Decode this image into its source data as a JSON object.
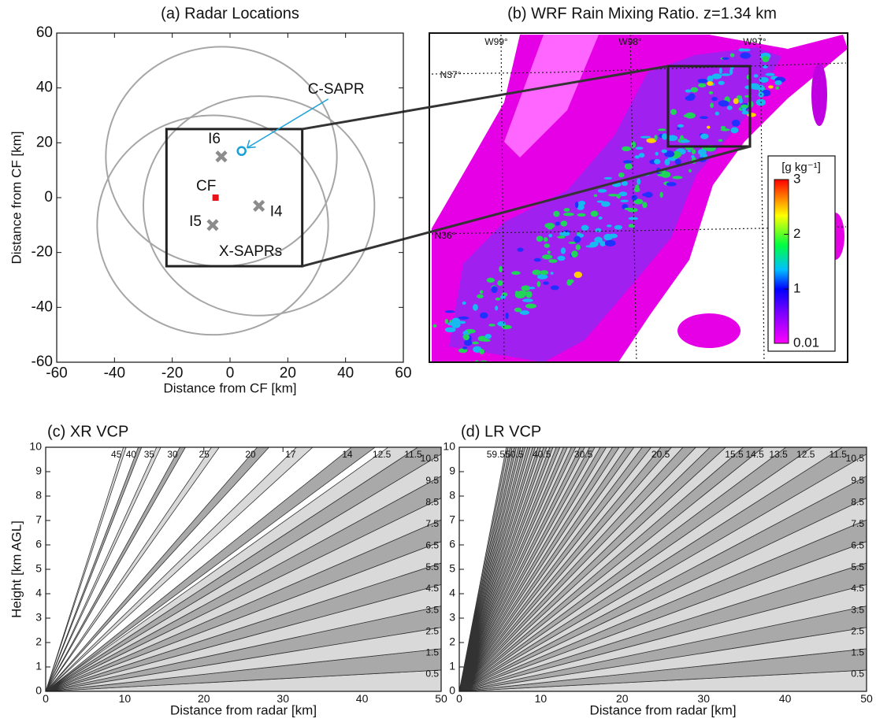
{
  "chart_data": [
    {
      "type": "sites",
      "title": "(a) Radar Locations",
      "xlabel": "Distance from CF [km]",
      "ylabel": "Distance from CF [km]",
      "xlim": [
        -60,
        60
      ],
      "ylim": [
        -60,
        60
      ],
      "xticks": [
        -60,
        -40,
        -20,
        0,
        20,
        40,
        60
      ],
      "yticks": [
        -60,
        -40,
        -20,
        0,
        20,
        40,
        60
      ],
      "sites": [
        {
          "name": "C-SAPR",
          "x": 4,
          "y": 17,
          "color": "#1ba1d8",
          "marker": "circle"
        },
        {
          "name": "I6",
          "x": -3,
          "y": 15,
          "color": "#8c8c8c",
          "marker": "x",
          "ring_radius": 40
        },
        {
          "name": "CF",
          "x": -5,
          "y": 0,
          "color": "#e8141b",
          "marker": "square"
        },
        {
          "name": "I4",
          "x": 10,
          "y": -3,
          "color": "#8c8c8c",
          "marker": "x",
          "ring_radius": 40
        },
        {
          "name": "I5",
          "x": -6,
          "y": -10,
          "color": "#8c8c8c",
          "marker": "x",
          "ring_radius": 40
        }
      ],
      "group_label": "X-SAPRs",
      "zoom_box": {
        "xlim": [
          -22,
          25
        ],
        "ylim": [
          -25,
          25
        ]
      }
    },
    {
      "type": "image",
      "title": "(b) WRF Rain Mixing Ratio. z=1.34 km",
      "lon_labels": [
        "W99°",
        "W98°",
        "W97°"
      ],
      "lat_labels": [
        "N37°",
        "N36°"
      ],
      "colorbar": {
        "label": "[g kg⁻¹]",
        "lim": [
          0.01,
          3
        ],
        "ticks": [
          0.01,
          1,
          2,
          3
        ]
      }
    },
    {
      "type": "beams",
      "title": "(c) XR VCP",
      "xlabel": "Distance from radar [km]",
      "ylabel": "Height [km AGL]",
      "xlim": [
        0,
        50
      ],
      "ylim": [
        0,
        10
      ],
      "xticks": [
        0,
        10,
        20,
        30,
        40,
        50
      ],
      "yticks": [
        0,
        1,
        2,
        3,
        4,
        5,
        6,
        7,
        8,
        9,
        10
      ],
      "labeled_beams": [
        0.5,
        1.5,
        2.5,
        3.5,
        4.5,
        5.5,
        6.5,
        7.5,
        8.5,
        9.5,
        10.5,
        11.5,
        12.5,
        14,
        17,
        20,
        25,
        30,
        35,
        40,
        45
      ],
      "unlabeled_beams": []
    },
    {
      "type": "beams",
      "title": "(d) LR VCP",
      "xlabel": "Distance from radar [km]",
      "xlim": [
        0,
        50
      ],
      "ylim": [
        0,
        10
      ],
      "xticks": [
        0,
        10,
        20,
        30,
        40,
        50
      ],
      "yticks": [
        0,
        1,
        2,
        3,
        4,
        5,
        6,
        7,
        8,
        9,
        10
      ],
      "labeled_beams": [
        0.5,
        1.5,
        2.5,
        3.5,
        4.5,
        5.5,
        6.5,
        7.5,
        8.5,
        9.5,
        10.5,
        11.5,
        12.5,
        13.5,
        14.5,
        15.5,
        20.5,
        30.5,
        40.5,
        50.5,
        59.5
      ],
      "unlabeled_beams": [
        16.5,
        17.5,
        18.5,
        19.5,
        21.5,
        22.5,
        23.5,
        24.5,
        25.5,
        26.5,
        27.5,
        28.5,
        29.5,
        31.5,
        32.5,
        33.5,
        34.5,
        35.5,
        36.5,
        37.5,
        38.5,
        39.5,
        41.5,
        42.5,
        43.5,
        44.5,
        45.5,
        46.5,
        47.5,
        48.5,
        49.5,
        51.5,
        52.5,
        53.5,
        54.5,
        55.5,
        56.5,
        57.5,
        58.5
      ]
    }
  ]
}
